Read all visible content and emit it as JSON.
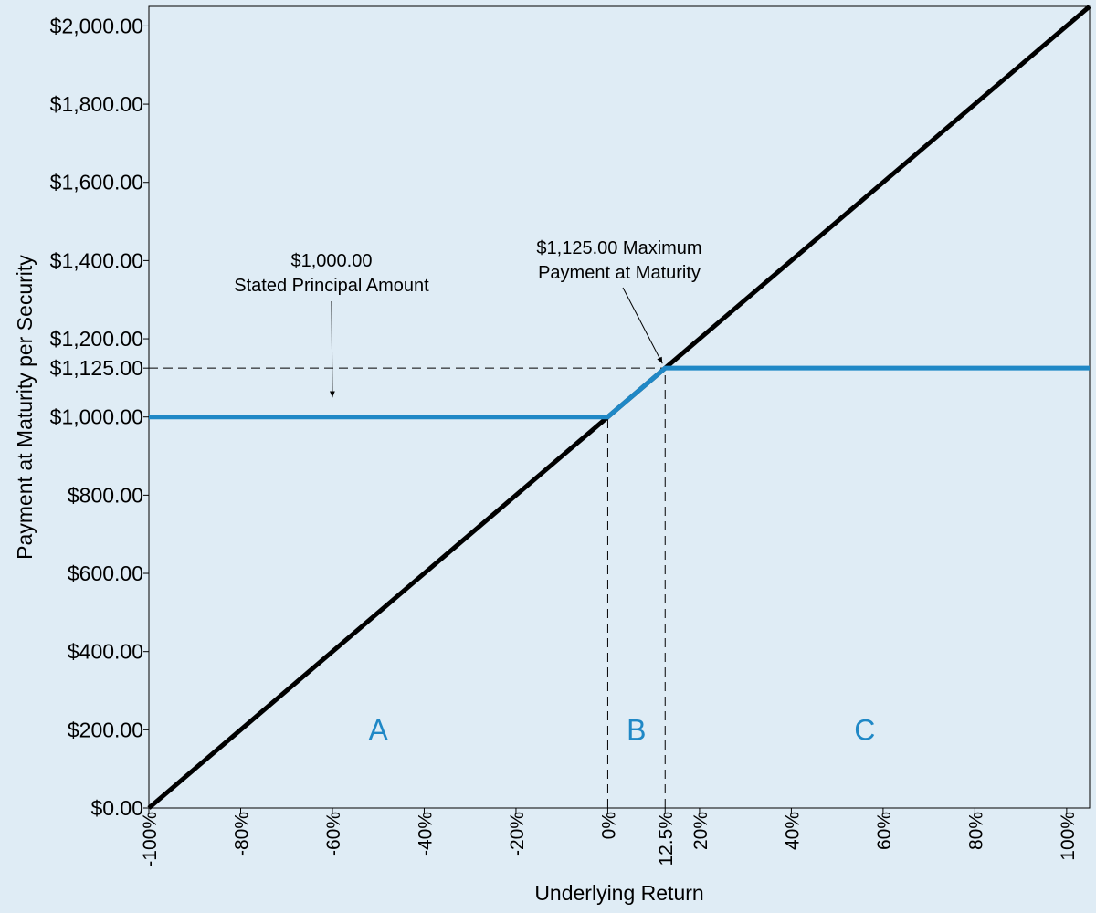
{
  "chart_data": {
    "type": "line",
    "xlabel": "Underlying Return",
    "ylabel": "Payment at Maturity per Security",
    "xlim": [
      -100,
      105
    ],
    "ylim": [
      0,
      2050
    ],
    "x_ticks": [
      -100,
      -80,
      -60,
      -40,
      -20,
      0,
      12.5,
      20,
      40,
      60,
      80,
      100
    ],
    "x_tick_labels": [
      "-100%",
      "-80%",
      "-60%",
      "-40%",
      "-20%",
      "0%",
      "12.5%",
      "20%",
      "40%",
      "60%",
      "80%",
      "100%"
    ],
    "y_ticks": [
      0,
      200,
      400,
      600,
      800,
      1000,
      1125,
      1200,
      1400,
      1600,
      1800,
      2000
    ],
    "y_tick_labels": [
      "$0.00",
      "$200.00",
      "$400.00",
      "$600.00",
      "$800.00",
      "$1,000.00",
      "$1,125.00",
      "$1,200.00",
      "$1,400.00",
      "$1,600.00",
      "$1,800.00",
      "$2,000.00"
    ],
    "grid": false,
    "series": [
      {
        "key": "underlying",
        "color": "#000000",
        "x": [
          -100,
          105
        ],
        "y": [
          0,
          2050
        ]
      },
      {
        "key": "security",
        "color": "#1f88c6",
        "x": [
          -100,
          0,
          12.5,
          105
        ],
        "y": [
          1000,
          1000,
          1125,
          1125
        ]
      }
    ],
    "reference_lines": [
      {
        "orientation": "horizontal",
        "y": 1125,
        "x_from": -100,
        "x_to": 105
      },
      {
        "orientation": "vertical",
        "x": 0,
        "y_from": 0,
        "y_to": 1000
      },
      {
        "orientation": "vertical",
        "x": 12.5,
        "y_from": 0,
        "y_to": 1125
      }
    ],
    "annotations": [
      {
        "key": "principal",
        "lines": [
          "$1,000.00",
          "Stated Principal Amount"
        ],
        "arrow_to": {
          "x": -60,
          "y": 1050
        }
      },
      {
        "key": "maximum",
        "lines": [
          "$1,125.00 Maximum",
          "Payment at Maturity"
        ],
        "arrow_to": {
          "x": 12.5,
          "y": 1125
        }
      }
    ],
    "regions": [
      {
        "label": "A",
        "x": -50,
        "y": 200
      },
      {
        "label": "B",
        "x": 6.25,
        "y": 200
      },
      {
        "label": "C",
        "x": 56,
        "y": 200
      }
    ],
    "region_color": "#1f88c6"
  }
}
